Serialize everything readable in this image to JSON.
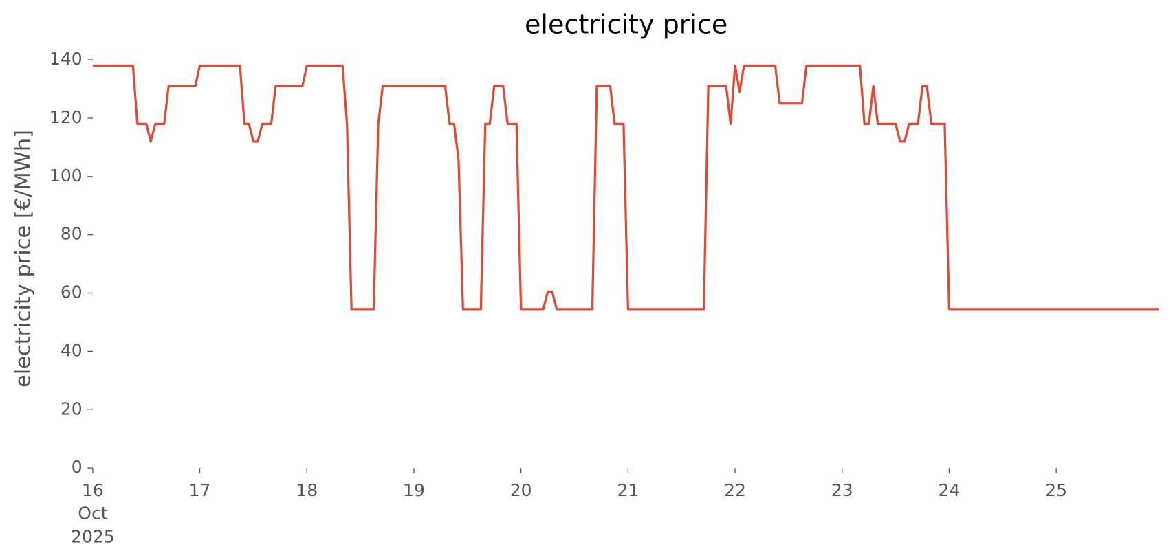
{
  "chart_data": {
    "type": "line",
    "title": "electricity price",
    "ylabel": "electricity price [€/MWh]",
    "x": [
      "2025-10-16 00:00",
      "2025-10-16 09:00",
      "2025-10-16 10:00",
      "2025-10-16 12:00",
      "2025-10-16 13:00",
      "2025-10-16 14:00",
      "2025-10-16 16:00",
      "2025-10-16 17:00",
      "2025-10-16 23:00",
      "2025-10-17 00:00",
      "2025-10-17 09:00",
      "2025-10-17 10:00",
      "2025-10-17 11:00",
      "2025-10-17 12:00",
      "2025-10-17 13:00",
      "2025-10-17 14:00",
      "2025-10-17 16:00",
      "2025-10-17 17:00",
      "2025-10-17 23:00",
      "2025-10-18 00:00",
      "2025-10-18 08:00",
      "2025-10-18 09:00",
      "2025-10-18 10:00",
      "2025-10-18 15:00",
      "2025-10-18 16:00",
      "2025-10-18 17:00",
      "2025-10-19 07:00",
      "2025-10-19 08:00",
      "2025-10-19 09:00",
      "2025-10-19 10:00",
      "2025-10-19 11:00",
      "2025-10-19 15:00",
      "2025-10-19 16:00",
      "2025-10-19 17:00",
      "2025-10-19 18:00",
      "2025-10-19 20:00",
      "2025-10-19 21:00",
      "2025-10-19 23:00",
      "2025-10-20 00:00",
      "2025-10-20 05:00",
      "2025-10-20 06:00",
      "2025-10-20 07:00",
      "2025-10-20 08:00",
      "2025-10-20 16:00",
      "2025-10-20 17:00",
      "2025-10-20 20:00",
      "2025-10-20 21:00",
      "2025-10-20 23:00",
      "2025-10-21 00:00",
      "2025-10-21 17:00",
      "2025-10-21 18:00",
      "2025-10-21 22:00",
      "2025-10-21 23:00",
      "2025-10-22 00:00",
      "2025-10-22 01:00",
      "2025-10-22 02:00",
      "2025-10-22 09:00",
      "2025-10-22 10:00",
      "2025-10-22 15:00",
      "2025-10-22 16:00",
      "2025-10-23 04:00",
      "2025-10-23 05:00",
      "2025-10-23 06:00",
      "2025-10-23 07:00",
      "2025-10-23 08:00",
      "2025-10-23 12:00",
      "2025-10-23 13:00",
      "2025-10-23 14:00",
      "2025-10-23 15:00",
      "2025-10-23 17:00",
      "2025-10-23 18:00",
      "2025-10-23 19:00",
      "2025-10-23 20:00",
      "2025-10-23 23:00",
      "2025-10-24 00:00",
      "2025-10-25 23:00"
    ],
    "series": [
      {
        "name": "electricity price",
        "color": "#e24a33",
        "values": [
          138,
          138,
          118,
          118,
          112,
          118,
          118,
          131,
          131,
          138,
          138,
          118,
          118,
          112,
          112,
          118,
          118,
          131,
          131,
          138,
          138,
          118,
          54.5,
          54.5,
          118,
          131,
          131,
          118,
          118,
          106,
          54.5,
          54.5,
          118,
          118,
          131,
          131,
          118,
          118,
          54.5,
          54.5,
          60.5,
          60.5,
          54.5,
          54.5,
          131,
          131,
          118,
          118,
          54.5,
          54.5,
          131,
          131,
          118,
          138,
          129,
          138,
          138,
          125,
          125,
          138,
          138,
          118,
          118,
          131,
          118,
          118,
          112,
          112,
          118,
          118,
          131,
          131,
          118,
          118,
          54.5,
          54.5
        ]
      }
    ],
    "xlim": [
      "2025-10-16 00:00",
      "2025-10-25 23:00"
    ],
    "xticks": [
      {
        "value": "2025-10-16 00:00",
        "label": [
          "16",
          "Oct",
          "2025"
        ]
      },
      {
        "value": "2025-10-17 00:00",
        "label": "17"
      },
      {
        "value": "2025-10-18 00:00",
        "label": "18"
      },
      {
        "value": "2025-10-19 00:00",
        "label": "19"
      },
      {
        "value": "2025-10-20 00:00",
        "label": "20"
      },
      {
        "value": "2025-10-21 00:00",
        "label": "21"
      },
      {
        "value": "2025-10-22 00:00",
        "label": "22"
      },
      {
        "value": "2025-10-23 00:00",
        "label": "23"
      },
      {
        "value": "2025-10-24 00:00",
        "label": "24"
      },
      {
        "value": "2025-10-25 00:00",
        "label": "25"
      }
    ],
    "ylim": [
      0,
      140
    ],
    "yticks": [
      0,
      20,
      40,
      60,
      80,
      100,
      120,
      140
    ],
    "grid": false
  }
}
